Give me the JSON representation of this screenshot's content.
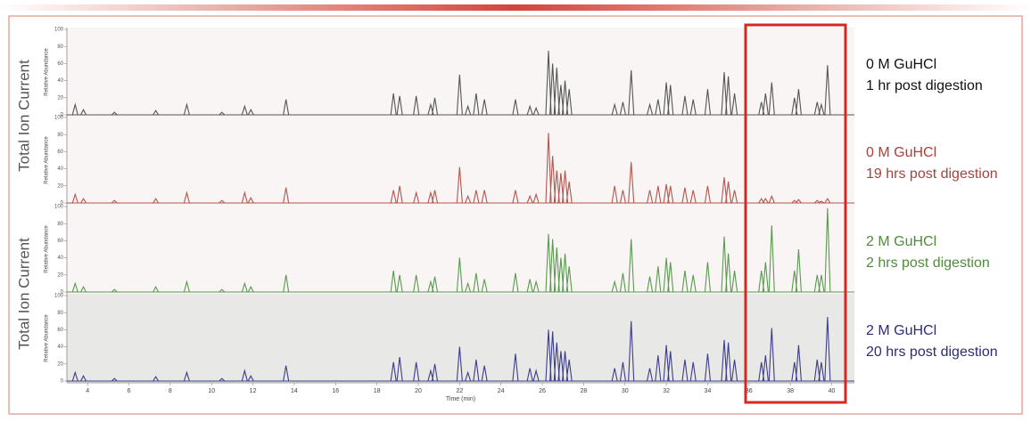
{
  "side_labels": [
    "Total Ion Current",
    "Total Ion Current"
  ],
  "chart_data": [
    {
      "type": "spectrum",
      "y_label": "Relative Abundance",
      "annotation": [
        "0 M GuHCl",
        "1 hr post digestion"
      ],
      "color": "#555555",
      "annotation_color": "#111111",
      "xlim": [
        3,
        41.1
      ],
      "ylim": [
        0,
        100
      ],
      "yticks": [
        0,
        20,
        40,
        60,
        80,
        100
      ],
      "x": [
        3.4,
        3.8,
        5.3,
        7.3,
        8.8,
        10.5,
        11.6,
        11.9,
        13.6,
        18.8,
        19.1,
        19.9,
        20.6,
        20.8,
        22.0,
        22.4,
        22.8,
        23.2,
        24.7,
        25.4,
        25.7,
        26.3,
        26.5,
        26.7,
        26.9,
        27.1,
        27.3,
        29.5,
        29.9,
        30.3,
        31.2,
        31.6,
        32.0,
        32.2,
        32.9,
        33.3,
        34.0,
        34.8,
        35.0,
        35.3,
        36.6,
        36.8,
        37.1,
        38.2,
        38.4,
        39.3,
        39.5,
        39.8
      ],
      "values": [
        12,
        6,
        3,
        5,
        12,
        3,
        10,
        6,
        18,
        25,
        22,
        22,
        12,
        20,
        47,
        10,
        25,
        18,
        18,
        10,
        8,
        75,
        60,
        55,
        35,
        40,
        30,
        12,
        15,
        52,
        12,
        18,
        38,
        35,
        22,
        18,
        30,
        50,
        45,
        25,
        15,
        25,
        38,
        20,
        30,
        15,
        12,
        58
      ]
    },
    {
      "type": "spectrum",
      "y_label": "Relative Abundance",
      "annotation": [
        "0 M GuHCl",
        "19 hrs post digestion"
      ],
      "color": "#b5554f",
      "annotation_color": "#a8423c",
      "xlim": [
        3,
        41.1
      ],
      "ylim": [
        0,
        100
      ],
      "yticks": [
        0,
        20,
        40,
        60,
        80,
        100
      ],
      "x": [
        3.4,
        3.8,
        5.3,
        7.3,
        8.8,
        10.5,
        11.6,
        11.9,
        13.6,
        18.8,
        19.1,
        19.9,
        20.6,
        20.8,
        22.0,
        22.4,
        22.8,
        23.2,
        24.7,
        25.4,
        25.7,
        26.3,
        26.5,
        26.7,
        26.9,
        27.1,
        27.3,
        29.5,
        29.9,
        30.3,
        31.2,
        31.6,
        32.0,
        32.2,
        32.9,
        33.3,
        34.0,
        34.8,
        35.0,
        35.3,
        36.6,
        36.8,
        37.1,
        38.2,
        38.4,
        39.3,
        39.5,
        39.8
      ],
      "values": [
        10,
        5,
        3,
        5,
        12,
        3,
        12,
        6,
        18,
        15,
        20,
        12,
        12,
        15,
        42,
        8,
        15,
        15,
        15,
        8,
        10,
        82,
        55,
        38,
        35,
        38,
        25,
        20,
        15,
        48,
        15,
        20,
        22,
        20,
        18,
        15,
        20,
        30,
        25,
        15,
        5,
        5,
        8,
        3,
        4,
        3,
        2,
        5
      ]
    },
    {
      "type": "spectrum",
      "y_label": "Relative Abundance",
      "annotation": [
        "2 M GuHCl",
        "2 hrs post digestion"
      ],
      "color": "#5a9a4f",
      "annotation_color": "#4e8c3c",
      "xlim": [
        3,
        41.1
      ],
      "ylim": [
        0,
        100
      ],
      "yticks": [
        0,
        20,
        40,
        60,
        80,
        100
      ],
      "x": [
        3.4,
        3.8,
        5.3,
        7.3,
        8.8,
        10.5,
        11.6,
        11.9,
        13.6,
        18.8,
        19.1,
        19.9,
        20.6,
        20.8,
        22.0,
        22.4,
        22.8,
        23.2,
        24.7,
        25.4,
        25.7,
        26.3,
        26.5,
        26.7,
        26.9,
        27.1,
        27.3,
        29.5,
        29.9,
        30.3,
        31.2,
        31.6,
        32.0,
        32.2,
        32.9,
        33.3,
        34.0,
        34.8,
        35.0,
        35.3,
        36.6,
        36.8,
        37.1,
        38.2,
        38.4,
        39.3,
        39.5,
        39.8
      ],
      "values": [
        10,
        6,
        3,
        6,
        12,
        3,
        10,
        6,
        20,
        25,
        20,
        20,
        12,
        18,
        40,
        10,
        22,
        15,
        22,
        15,
        12,
        68,
        62,
        52,
        40,
        45,
        30,
        12,
        22,
        62,
        18,
        30,
        40,
        35,
        25,
        20,
        35,
        65,
        45,
        25,
        25,
        35,
        78,
        25,
        50,
        20,
        20,
        98
      ]
    },
    {
      "type": "spectrum",
      "y_label": "Relative Abundance",
      "annotation": [
        "2 M GuHCl",
        "20 hrs post digestion"
      ],
      "color": "#3d3d8c",
      "annotation_color": "#2c2c78",
      "xlim": [
        3,
        41.1
      ],
      "ylim": [
        0,
        100
      ],
      "yticks": [
        0,
        20,
        40,
        60,
        80,
        100
      ],
      "x_label": "Time (min)",
      "xticks": [
        4,
        6,
        8,
        10,
        12,
        14,
        16,
        18,
        20,
        22,
        24,
        26,
        28,
        30,
        32,
        34,
        36,
        38,
        40
      ],
      "x": [
        3.4,
        3.8,
        5.3,
        7.3,
        8.8,
        10.5,
        11.6,
        11.9,
        13.6,
        18.8,
        19.1,
        19.9,
        20.6,
        20.8,
        22.0,
        22.4,
        22.8,
        23.2,
        24.7,
        25.4,
        25.7,
        26.3,
        26.5,
        26.7,
        26.9,
        27.1,
        27.3,
        29.5,
        29.9,
        30.3,
        31.2,
        31.6,
        32.0,
        32.2,
        32.9,
        33.3,
        34.0,
        34.8,
        35.0,
        35.3,
        36.6,
        36.8,
        37.1,
        38.2,
        38.4,
        39.3,
        39.5,
        39.8
      ],
      "values": [
        10,
        6,
        3,
        5,
        10,
        3,
        12,
        6,
        18,
        22,
        28,
        22,
        12,
        20,
        40,
        10,
        25,
        18,
        32,
        15,
        12,
        60,
        58,
        45,
        35,
        35,
        25,
        15,
        22,
        70,
        15,
        30,
        42,
        35,
        25,
        22,
        32,
        48,
        45,
        25,
        22,
        30,
        62,
        22,
        42,
        25,
        22,
        75
      ]
    }
  ]
}
